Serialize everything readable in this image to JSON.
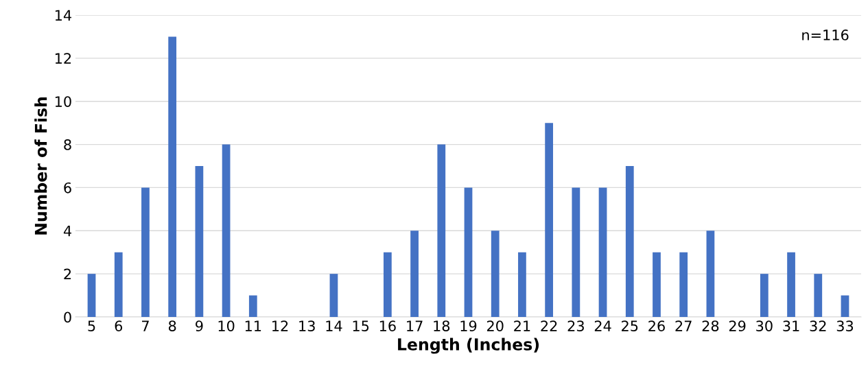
{
  "chart_data": {
    "type": "bar",
    "xlabel": "Length (Inches)",
    "ylabel": "Number of Fish",
    "categories": [
      "5",
      "6",
      "7",
      "8",
      "9",
      "10",
      "11",
      "12",
      "13",
      "14",
      "15",
      "16",
      "17",
      "18",
      "19",
      "20",
      "21",
      "22",
      "23",
      "24",
      "25",
      "26",
      "27",
      "28",
      "29",
      "30",
      "31",
      "32",
      "33"
    ],
    "values": [
      2,
      3,
      6,
      13,
      7,
      8,
      1,
      0,
      0,
      2,
      0,
      3,
      4,
      8,
      6,
      4,
      3,
      9,
      6,
      6,
      7,
      3,
      3,
      4,
      0,
      2,
      3,
      2,
      1
    ],
    "color": "#4472c4",
    "ylim": [
      0,
      14
    ],
    "yticks": [
      0,
      2,
      4,
      6,
      8,
      10,
      12,
      14
    ],
    "grid": "y",
    "annotations": [
      "n=116"
    ]
  }
}
